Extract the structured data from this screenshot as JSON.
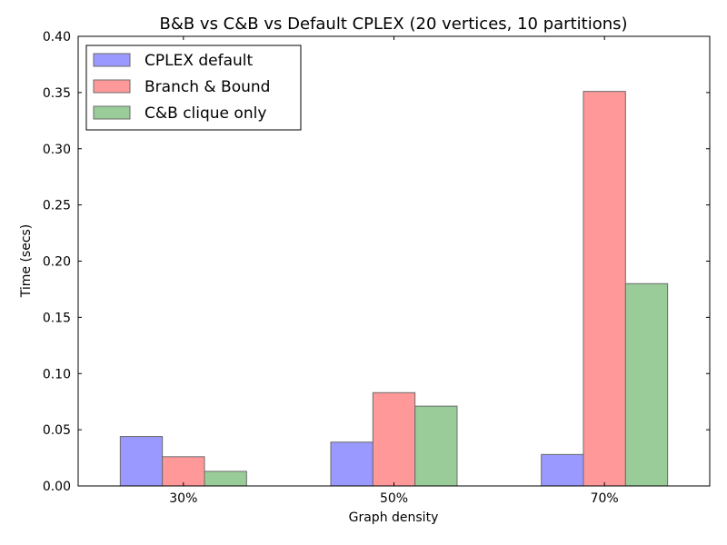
{
  "chart_data": {
    "type": "bar",
    "title": "B&B vs C&B vs Default CPLEX (20 vertices, 10 partitions)",
    "xlabel": "Graph density",
    "ylabel": "Time (secs)",
    "categories": [
      "30%",
      "50%",
      "70%"
    ],
    "ylim": [
      0,
      0.4
    ],
    "yticks": [
      "0.00",
      "0.05",
      "0.10",
      "0.15",
      "0.20",
      "0.25",
      "0.30",
      "0.35",
      "0.40"
    ],
    "grid": false,
    "legend_position": "top-left",
    "series": [
      {
        "name": "CPLEX default",
        "color": "#9999ff",
        "values": [
          0.044,
          0.039,
          0.028
        ]
      },
      {
        "name": "Branch & Bound",
        "color": "#ff9999",
        "values": [
          0.026,
          0.083,
          0.351
        ]
      },
      {
        "name": "C&B clique only",
        "color": "#99cc99",
        "values": [
          0.013,
          0.071,
          0.18
        ]
      }
    ]
  }
}
